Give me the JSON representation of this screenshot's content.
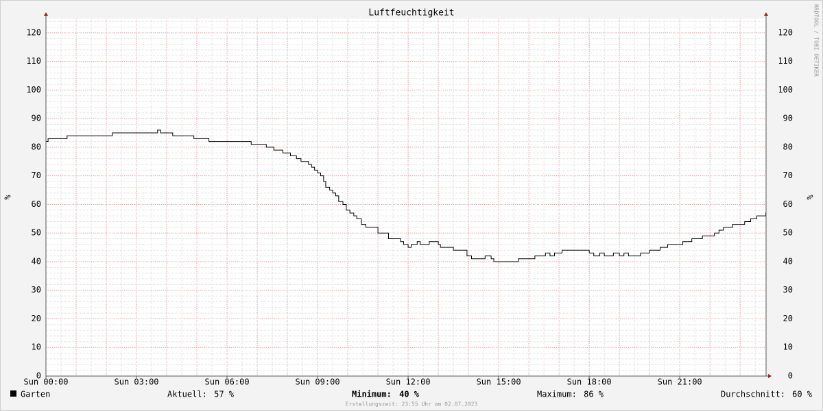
{
  "chart_data": {
    "type": "line",
    "title": "Luftfeuchtigkeit",
    "ylabel": "%",
    "watermark": "RRDTOOL / TOBI OETIKER",
    "footer": "Erstellungszeit: 23:55 Uhr am 02.07.2023",
    "step": true,
    "grid": true,
    "xlim": [
      0,
      23.86
    ],
    "ylim": [
      0,
      125
    ],
    "xticks": [
      {
        "value": 0,
        "label": "Sun 00:00"
      },
      {
        "value": 3,
        "label": "Sun 03:00"
      },
      {
        "value": 6,
        "label": "Sun 06:00"
      },
      {
        "value": 9,
        "label": "Sun 09:00"
      },
      {
        "value": 12,
        "label": "Sun 12:00"
      },
      {
        "value": 15,
        "label": "Sun 15:00"
      },
      {
        "value": 18,
        "label": "Sun 18:00"
      },
      {
        "value": 21,
        "label": "Sun 21:00"
      }
    ],
    "yticks": [
      0,
      10,
      20,
      30,
      40,
      50,
      60,
      70,
      80,
      90,
      100,
      110,
      120
    ],
    "x": [
      0,
      0.07,
      0.7,
      2.2,
      3.7,
      3.8,
      4.2,
      4.9,
      5.4,
      6.8,
      7.3,
      7.55,
      7.85,
      8.1,
      8.3,
      8.45,
      8.7,
      8.8,
      8.9,
      9.0,
      9.1,
      9.2,
      9.27,
      9.4,
      9.5,
      9.6,
      9.7,
      9.84,
      9.95,
      10.07,
      10.2,
      10.3,
      10.45,
      10.6,
      11.0,
      11.35,
      11.75,
      11.85,
      12.0,
      12.1,
      12.3,
      12.4,
      12.7,
      13.0,
      13.07,
      13.5,
      13.95,
      14.1,
      14.55,
      14.75,
      14.84,
      15.65,
      16.2,
      16.55,
      16.7,
      16.85,
      17.1,
      18.0,
      18.15,
      18.35,
      18.5,
      18.8,
      19.0,
      19.15,
      19.3,
      19.7,
      20.0,
      20.35,
      20.6,
      21.1,
      21.4,
      21.75,
      22.15,
      22.3,
      22.45,
      22.75,
      23.15,
      23.35,
      23.55,
      23.85
    ],
    "series": [
      {
        "name": "Garten",
        "color": "#000000",
        "values": [
          82,
          83,
          84,
          85,
          86,
          85,
          84,
          83,
          82,
          81,
          80,
          79,
          78,
          77,
          76,
          75,
          74,
          73,
          72,
          71,
          70,
          68,
          66,
          65,
          64,
          63,
          61,
          60,
          58,
          57,
          56,
          55,
          53,
          52,
          50,
          48,
          47,
          46,
          45,
          46,
          47,
          46,
          47,
          46,
          45,
          44,
          42,
          41,
          42,
          41,
          40,
          41,
          42,
          43,
          42,
          43,
          44,
          43,
          42,
          43,
          42,
          43,
          42,
          43,
          42,
          43,
          44,
          45,
          46,
          47,
          48,
          49,
          50,
          51,
          52,
          53,
          54,
          55,
          56,
          57
        ]
      }
    ],
    "stats": [
      {
        "label": "Aktuell:",
        "value": "57 %"
      },
      {
        "label": "Minimum:",
        "value": "40 %"
      },
      {
        "label": "Maximum:",
        "value": "86 %"
      },
      {
        "label": "Durchschnitt:",
        "value": "60 %"
      }
    ]
  }
}
